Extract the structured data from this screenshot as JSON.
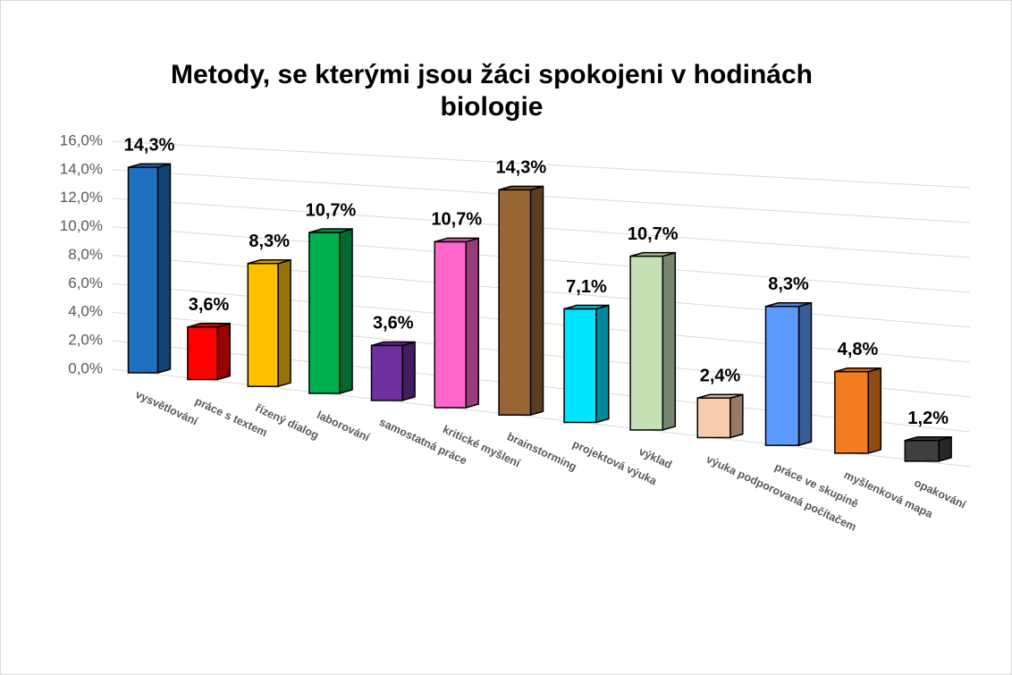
{
  "chart_data": {
    "type": "bar3d",
    "title": "Metody, se kterými jsou žáci spokojeni v hodinách biologie",
    "categories": [
      "vysvětlování",
      "práce s textem",
      "řízený dialog",
      "laborování",
      "samostatná práce",
      "kritické myšlení",
      "brainstorming",
      "projektová výuka",
      "výklad",
      "výuka podporovaná počítačem",
      "práce ve skupině",
      "myšlenková mapa",
      "opakování"
    ],
    "values": [
      14.3,
      3.6,
      8.3,
      10.7,
      3.6,
      10.7,
      14.3,
      7.1,
      10.7,
      2.4,
      8.3,
      4.8,
      1.2
    ],
    "value_labels": [
      "14,3%",
      "3,6%",
      "8,3%",
      "10,7%",
      "3,6%",
      "10,7%",
      "14,3%",
      "7,1%",
      "10,7%",
      "2,4%",
      "8,3%",
      "4,8%",
      "1,2%"
    ],
    "colors": [
      "#1f6fc0",
      "#ff0000",
      "#ffc000",
      "#00b050",
      "#7030a0",
      "#ff66cc",
      "#996633",
      "#00e5ff",
      "#c5e0b4",
      "#f8cbad",
      "#5b9bff",
      "#f47c20",
      "#404040"
    ],
    "ylim": [
      0,
      16
    ],
    "yticks": [
      {
        "value": 0,
        "label": "0,0%"
      },
      {
        "value": 2,
        "label": "2,0%"
      },
      {
        "value": 4,
        "label": "4,0%"
      },
      {
        "value": 6,
        "label": "6,0%"
      },
      {
        "value": 8,
        "label": "8,0%"
      },
      {
        "value": 10,
        "label": "10,0%"
      },
      {
        "value": 12,
        "label": "12,0%"
      },
      {
        "value": 14,
        "label": "14,0%"
      },
      {
        "value": 16,
        "label": "16,0%"
      }
    ],
    "grid": true
  }
}
